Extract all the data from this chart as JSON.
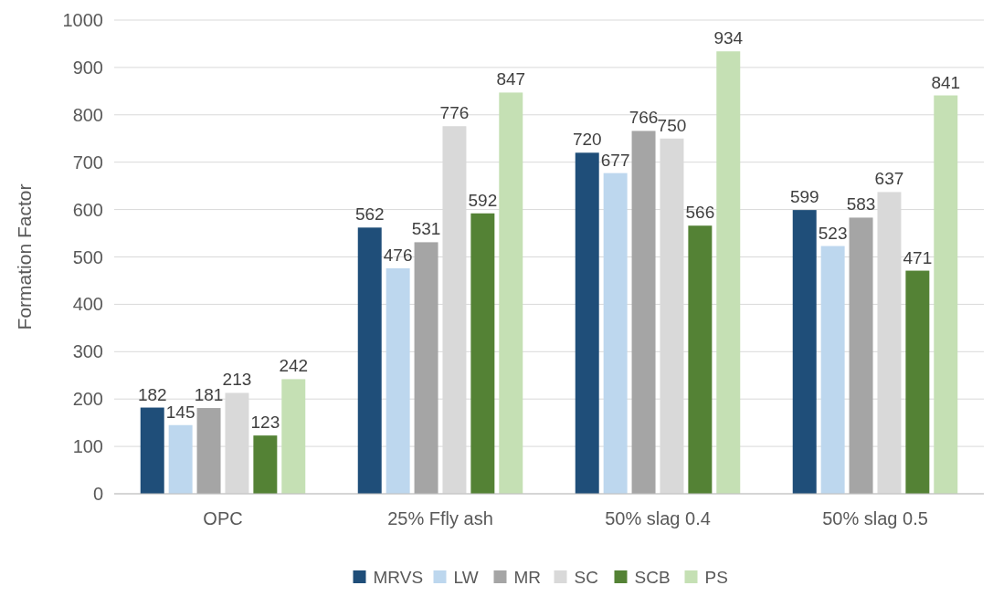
{
  "chart_data": {
    "type": "bar",
    "ylabel": "Formation Factor",
    "categories": [
      "OPC",
      "25% Ffly ash",
      "50% slag 0.4",
      "50% slag 0.5"
    ],
    "series": [
      {
        "name": "MRVS",
        "color": "#1f4e79",
        "values": [
          182,
          562,
          720,
          599
        ]
      },
      {
        "name": "LW",
        "color": "#bdd7ee",
        "values": [
          145,
          476,
          677,
          523
        ]
      },
      {
        "name": "MR",
        "color": "#a5a5a5",
        "values": [
          181,
          531,
          766,
          583
        ]
      },
      {
        "name": "SC",
        "color": "#d9d9d9",
        "values": [
          213,
          776,
          750,
          637
        ]
      },
      {
        "name": "SCB",
        "color": "#548235",
        "values": [
          123,
          592,
          566,
          471
        ]
      },
      {
        "name": "PS",
        "color": "#c5e0b4",
        "values": [
          242,
          847,
          934,
          841
        ]
      }
    ],
    "ylim": [
      0,
      1000
    ],
    "yticks": [
      0,
      100,
      200,
      300,
      400,
      500,
      600,
      700,
      800,
      900,
      1000
    ],
    "grid": "y",
    "legend": "bottom",
    "data_labels": true
  }
}
